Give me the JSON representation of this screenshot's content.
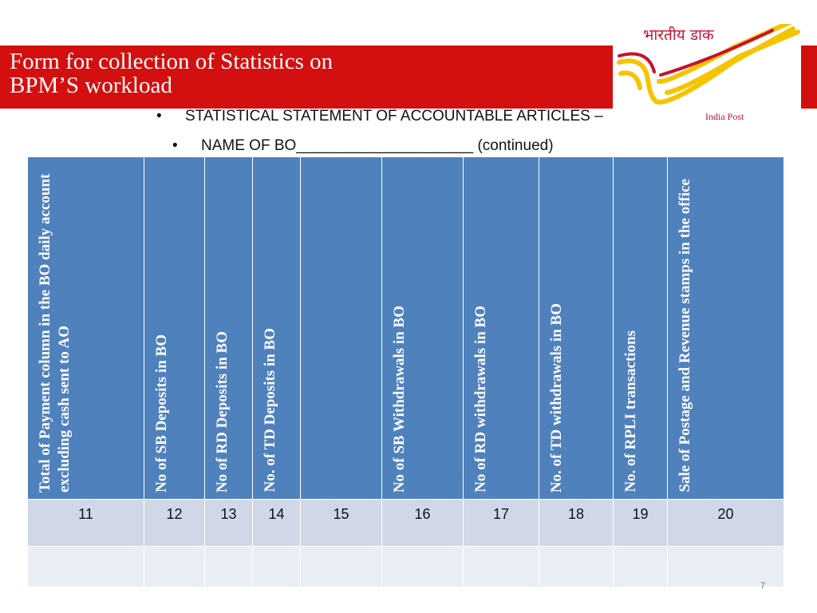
{
  "title": {
    "line1": "Form for collection of Statistics on",
    "line2": "BPM’S workload"
  },
  "logo": {
    "hindi_text": "भारतीय डाक",
    "english_text": "India Post",
    "brand_color": "#c8102e",
    "stripe_color": "#f5c400"
  },
  "bullets": [
    "STATISTICAL STATEMENT OF ACCOUNTABLE ARTICLES –",
    "NAME OF BO_____________________  (continued)"
  ],
  "table": {
    "headers": [
      "Total of Payment column in the BO daily account  excluding cash sent to AO",
      "No of SB Deposits in BO",
      "No of RD Deposits in BO",
      "No. of TD Deposits in BO",
      "",
      "No of SB Withdrawals in BO",
      "No of RD  withdrawals in BO",
      "No. of TD withdrawals in BO",
      "No. of RPLI transactions",
      "Sale of Postage and Revenue  stamps in the office"
    ],
    "numbers": [
      "11",
      "12",
      "13",
      "14",
      "15",
      "16",
      "17",
      "18",
      "19",
      "20"
    ]
  },
  "page_number": "7",
  "colors": {
    "band_red": "#d40f0f",
    "header_blue": "#4f81bd",
    "row_light": "#d0d8e8",
    "row_lighter": "#e9edf4"
  }
}
